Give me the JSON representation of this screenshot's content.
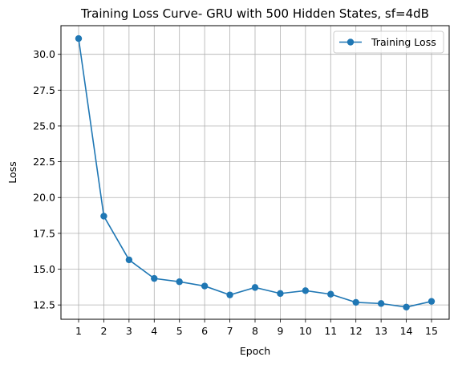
{
  "chart_data": {
    "type": "line",
    "title": "Training Loss Curve- GRU with 500 Hidden States, sf=4dB",
    "xlabel": "Epoch",
    "ylabel": "Loss",
    "x": [
      "1",
      "2",
      "3",
      "4",
      "5",
      "6",
      "7",
      "8",
      "9",
      "10",
      "11",
      "12",
      "13",
      "14",
      "15"
    ],
    "series": [
      {
        "name": "Training Loss",
        "color": "#1f77b4",
        "marker": "circle",
        "values": [
          31.1,
          18.7,
          15.65,
          14.35,
          14.12,
          13.82,
          13.2,
          13.72,
          13.3,
          13.5,
          13.25,
          12.68,
          12.6,
          12.35,
          12.75
        ]
      }
    ],
    "yticks": [
      "12.5",
      "15.0",
      "17.5",
      "20.0",
      "22.5",
      "25.0",
      "27.5",
      "30.0"
    ],
    "ylim": [
      11.5,
      32.0
    ],
    "xlim": [
      0.3,
      15.7
    ],
    "grid": true,
    "legend_position": "top-right"
  }
}
